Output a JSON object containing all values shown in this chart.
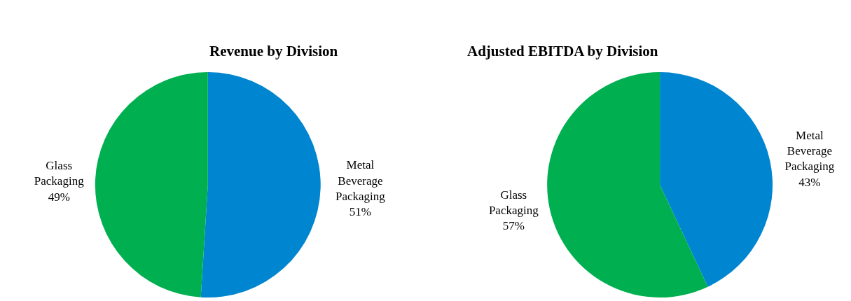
{
  "chart_data": [
    {
      "type": "pie",
      "title": "Revenue by Division",
      "categories": [
        "Metal Beverage Packaging",
        "Glass Packaging"
      ],
      "values": [
        51,
        49
      ],
      "colors": [
        "#0085d0",
        "#00b050"
      ],
      "value_labels": [
        "51%",
        "49%"
      ],
      "legend": false
    },
    {
      "type": "pie",
      "title": "Adjusted EBITDA by Division",
      "categories": [
        "Metal Beverage Packaging",
        "Glass Packaging"
      ],
      "values": [
        43,
        57
      ],
      "colors": [
        "#0085d0",
        "#00b050"
      ],
      "value_labels": [
        "43%",
        "57%"
      ],
      "legend": false
    }
  ]
}
